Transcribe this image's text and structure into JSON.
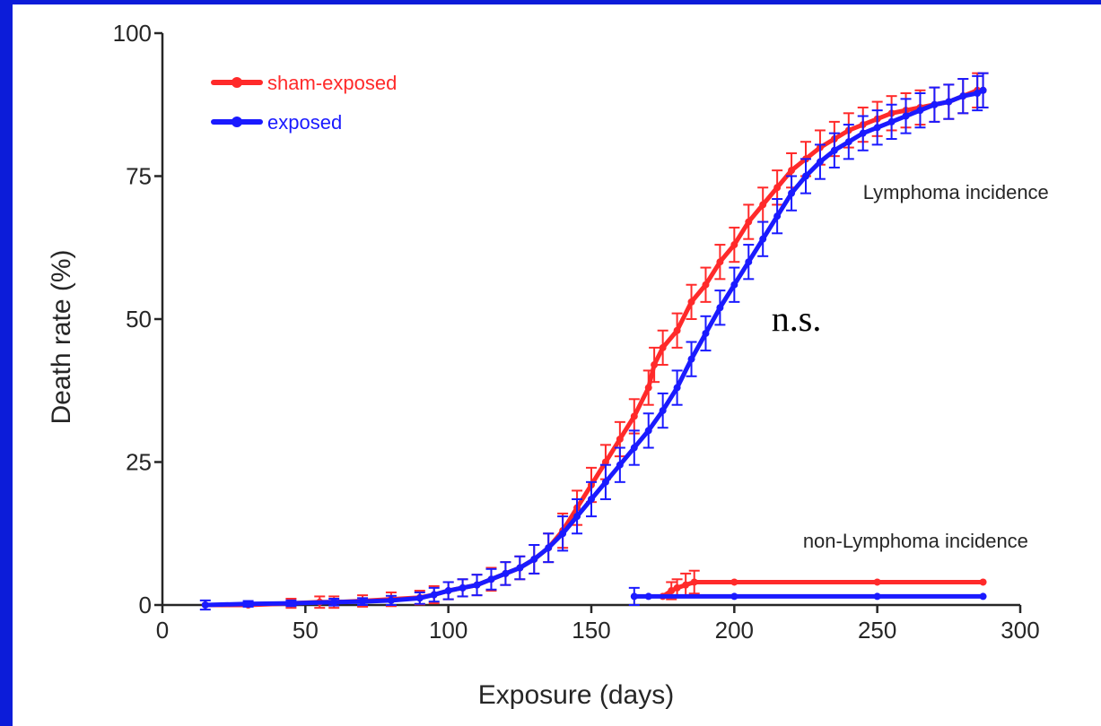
{
  "chart_data": {
    "type": "line",
    "xlabel": "Exposure (days)",
    "ylabel": "Death rate (%)",
    "xlim": [
      0,
      300
    ],
    "ylim": [
      0,
      100
    ],
    "xticks": [
      0,
      50,
      100,
      150,
      200,
      250,
      300
    ],
    "yticks": [
      0,
      25,
      50,
      75,
      100
    ],
    "grid": false,
    "legend_position": "top-left",
    "series": [
      {
        "name": "sham-exposed",
        "group": "Lymphoma incidence",
        "color": "#ff2a2a",
        "x": [
          15,
          30,
          45,
          55,
          60,
          70,
          80,
          90,
          95,
          100,
          105,
          110,
          115,
          120,
          125,
          130,
          135,
          140,
          145,
          150,
          155,
          160,
          165,
          170,
          172,
          175,
          180,
          185,
          190,
          195,
          200,
          205,
          210,
          215,
          220,
          225,
          230,
          235,
          240,
          245,
          250,
          255,
          260,
          265,
          270,
          275,
          280,
          285,
          287
        ],
        "values": [
          0,
          0,
          0.3,
          0.5,
          0.5,
          0.7,
          1,
          1.3,
          1.8,
          2.5,
          3,
          3.5,
          4.5,
          5.5,
          6.5,
          8,
          10,
          13,
          17,
          21,
          25,
          29,
          33,
          38,
          42,
          45,
          48,
          53,
          56,
          60,
          63,
          67,
          70,
          73,
          76,
          78,
          80,
          81.5,
          83,
          84,
          85,
          86,
          86.5,
          87,
          87.5,
          88,
          89,
          90,
          90
        ],
        "error": [
          0,
          0,
          0.8,
          1,
          1,
          1,
          1.2,
          1.2,
          1.5,
          1.5,
          1.5,
          1.8,
          2,
          2,
          2,
          2.5,
          2.5,
          3,
          3,
          3,
          3,
          3,
          3,
          3,
          3,
          3,
          3,
          3,
          3,
          3,
          3,
          3,
          3,
          3,
          3,
          3,
          3,
          3,
          3,
          3,
          3,
          3,
          3,
          3,
          3,
          3,
          3,
          3,
          3
        ]
      },
      {
        "name": "exposed",
        "group": "Lymphoma incidence",
        "color": "#1a1aff",
        "x": [
          15,
          30,
          45,
          60,
          70,
          80,
          90,
          95,
          100,
          105,
          110,
          115,
          120,
          125,
          130,
          135,
          140,
          145,
          150,
          155,
          160,
          165,
          170,
          175,
          180,
          185,
          190,
          195,
          200,
          205,
          210,
          215,
          220,
          225,
          230,
          235,
          240,
          245,
          250,
          255,
          260,
          265,
          270,
          275,
          280,
          285,
          287
        ],
        "values": [
          0,
          0.2,
          0.3,
          0.5,
          0.6,
          0.8,
          1.2,
          1.8,
          2.5,
          3,
          3.5,
          4.5,
          5.5,
          6.5,
          8,
          10,
          12.5,
          15.5,
          18.5,
          21.5,
          24.5,
          27.5,
          30.5,
          34,
          38,
          43,
          47.5,
          52,
          56,
          60,
          64,
          68,
          72,
          75,
          77.5,
          79.5,
          81,
          82.5,
          83.5,
          84.5,
          85.5,
          86.5,
          87.5,
          88,
          89,
          89.5,
          90
        ],
        "error": [
          0.8,
          0.5,
          0.5,
          0.6,
          0.6,
          0.8,
          1,
          1.2,
          1.5,
          1.5,
          1.8,
          1.8,
          2,
          2,
          2.5,
          2.5,
          3,
          3,
          3,
          3,
          3,
          3,
          3,
          3,
          3,
          3,
          3,
          3,
          3,
          3,
          3,
          3,
          3,
          3,
          3,
          3,
          3,
          3,
          3,
          3,
          3,
          3,
          3,
          3,
          3,
          3,
          3
        ]
      },
      {
        "name": "sham-exposed",
        "group": "non-Lymphoma incidence",
        "color": "#ff2a2a",
        "x": [
          175,
          178,
          180,
          183,
          186,
          200,
          250,
          287
        ],
        "values": [
          1.5,
          2.5,
          3,
          3.5,
          4,
          4,
          4,
          4
        ],
        "error": [
          0,
          1.5,
          1.5,
          2,
          2,
          0,
          0,
          0
        ]
      },
      {
        "name": "exposed",
        "group": "non-Lymphoma incidence",
        "color": "#1a1aff",
        "x": [
          165,
          170,
          200,
          250,
          287
        ],
        "values": [
          1.5,
          1.5,
          1.5,
          1.5,
          1.5
        ],
        "error": [
          1.5,
          0,
          0,
          0,
          0
        ]
      }
    ],
    "annotations": [
      {
        "text": "Lymphoma incidence",
        "x": 245,
        "y": 71
      },
      {
        "text": "non-Lymphoma incidence",
        "x": 224,
        "y": 10
      },
      {
        "text": "n.s.",
        "x": 213,
        "y": 48
      }
    ]
  }
}
